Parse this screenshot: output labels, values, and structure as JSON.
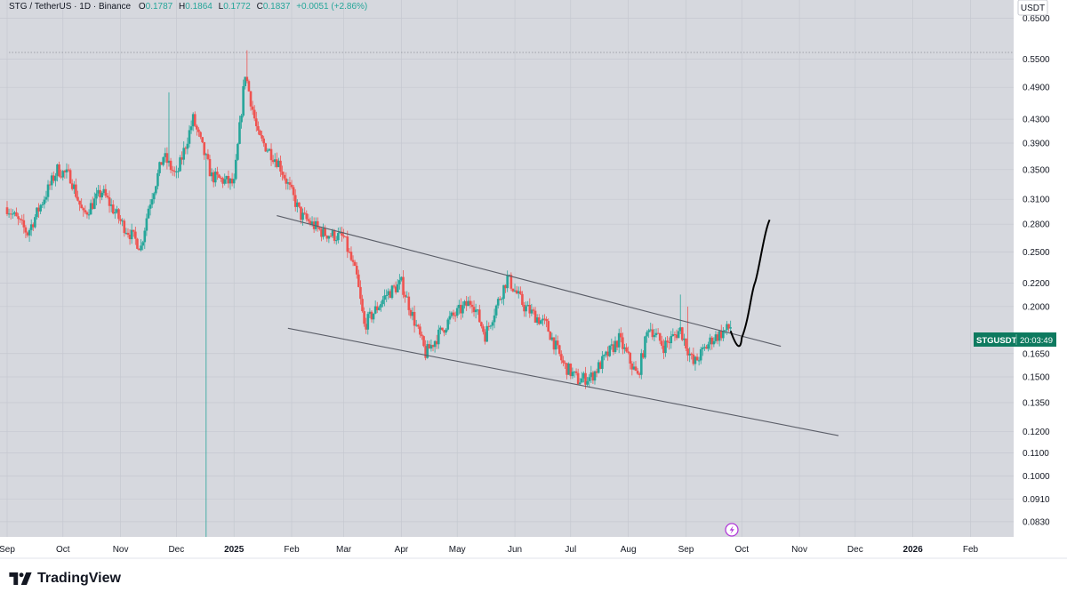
{
  "header": {
    "symbol": "STG / TetherUS · 1D · Binance",
    "open_label": "O",
    "open": "0.1787",
    "high_label": "H",
    "high": "0.1864",
    "low_label": "L",
    "low": "0.1772",
    "close_label": "C",
    "close": "0.1837",
    "change": "+0.0051 (+2.86%)"
  },
  "currency_button": "USDT",
  "price_tag": {
    "symbol": "STGUSDT",
    "countdown": "20:03:49"
  },
  "brand": {
    "name": "TradingView"
  },
  "colors": {
    "background": "#d6d8de",
    "grid": "#c5c8d0",
    "up": "#26a69a",
    "down": "#ef5350",
    "channel": "#5b5e68",
    "projection": "#000000",
    "tag": "#0e7a5f"
  },
  "chart_data": {
    "type": "candlestick",
    "scale": "log",
    "ylim": [
      0.078,
      0.7
    ],
    "y_ticks": [
      "0.6500",
      "0.5500",
      "0.4900",
      "0.4300",
      "0.3900",
      "0.3500",
      "0.3100",
      "0.2800",
      "0.2500",
      "0.2200",
      "0.2000",
      "0.1650",
      "0.1500",
      "0.1350",
      "0.1200",
      "0.1100",
      "0.1000",
      "0.0910",
      "0.0830"
    ],
    "x_ticks": [
      "Sep",
      "Oct",
      "Nov",
      "Dec",
      "2025",
      "Feb",
      "Mar",
      "Apr",
      "May",
      "Jun",
      "Jul",
      "Aug",
      "Sep",
      "Oct",
      "Nov",
      "Dec",
      "2026",
      "Feb"
    ],
    "date_range": [
      "2024-09-01",
      "2026-02-28"
    ],
    "grid": true,
    "reference_level": 0.565,
    "candle_path": [
      [
        "2024-09-01",
        0.3
      ],
      [
        "2024-09-12",
        0.27
      ],
      [
        "2024-09-28",
        0.35
      ],
      [
        "2024-10-05",
        0.34
      ],
      [
        "2024-10-12",
        0.29
      ],
      [
        "2024-10-22",
        0.32
      ],
      [
        "2024-11-02",
        0.28
      ],
      [
        "2024-11-12",
        0.255
      ],
      [
        "2024-11-16",
        0.3
      ],
      [
        "2024-11-24",
        0.37
      ],
      [
        "2024-12-01",
        0.34
      ],
      [
        "2024-12-10",
        0.43
      ],
      [
        "2024-12-20",
        0.34
      ],
      [
        "2025-01-01",
        0.33
      ],
      [
        "2025-01-07",
        0.52
      ],
      [
        "2025-01-14",
        0.4
      ],
      [
        "2025-01-25",
        0.36
      ],
      [
        "2025-02-06",
        0.29
      ],
      [
        "2025-02-18",
        0.27
      ],
      [
        "2025-03-01",
        0.265
      ],
      [
        "2025-03-08",
        0.225
      ],
      [
        "2025-03-12",
        0.185
      ],
      [
        "2025-03-24",
        0.21
      ],
      [
        "2025-04-01",
        0.22
      ],
      [
        "2025-04-14",
        0.165
      ],
      [
        "2025-04-27",
        0.19
      ],
      [
        "2025-05-09",
        0.205
      ],
      [
        "2025-05-16",
        0.178
      ],
      [
        "2025-05-28",
        0.225
      ],
      [
        "2025-06-06",
        0.2
      ],
      [
        "2025-06-18",
        0.185
      ],
      [
        "2025-06-27",
        0.158
      ],
      [
        "2025-07-05",
        0.148
      ],
      [
        "2025-07-12",
        0.15
      ],
      [
        "2025-07-27",
        0.175
      ],
      [
        "2025-08-06",
        0.15
      ],
      [
        "2025-08-12",
        0.185
      ],
      [
        "2025-08-20",
        0.17
      ],
      [
        "2025-08-29",
        0.182
      ],
      [
        "2025-09-05",
        0.158
      ],
      [
        "2025-09-15",
        0.175
      ],
      [
        "2025-09-25",
        0.1837
      ]
    ],
    "wick_spikes": [
      {
        "date": "2024-11-27",
        "high": 0.48
      },
      {
        "date": "2024-12-17",
        "low": 0.078
      },
      {
        "date": "2025-01-08",
        "high": 0.57
      },
      {
        "date": "2025-08-29",
        "high": 0.21
      },
      {
        "date": "2025-09-02",
        "high": 0.2
      }
    ],
    "channel_upper": [
      [
        "2025-01-24",
        0.29
      ],
      [
        "2025-10-22",
        0.17
      ]
    ],
    "channel_lower": [
      [
        "2025-01-30",
        0.183
      ],
      [
        "2025-11-22",
        0.118
      ]
    ],
    "projection": [
      [
        "2025-09-25",
        0.181
      ],
      [
        "2025-10-01",
        0.176
      ],
      [
        "2025-10-08",
        0.22
      ],
      [
        "2025-10-16",
        0.285
      ]
    ]
  }
}
